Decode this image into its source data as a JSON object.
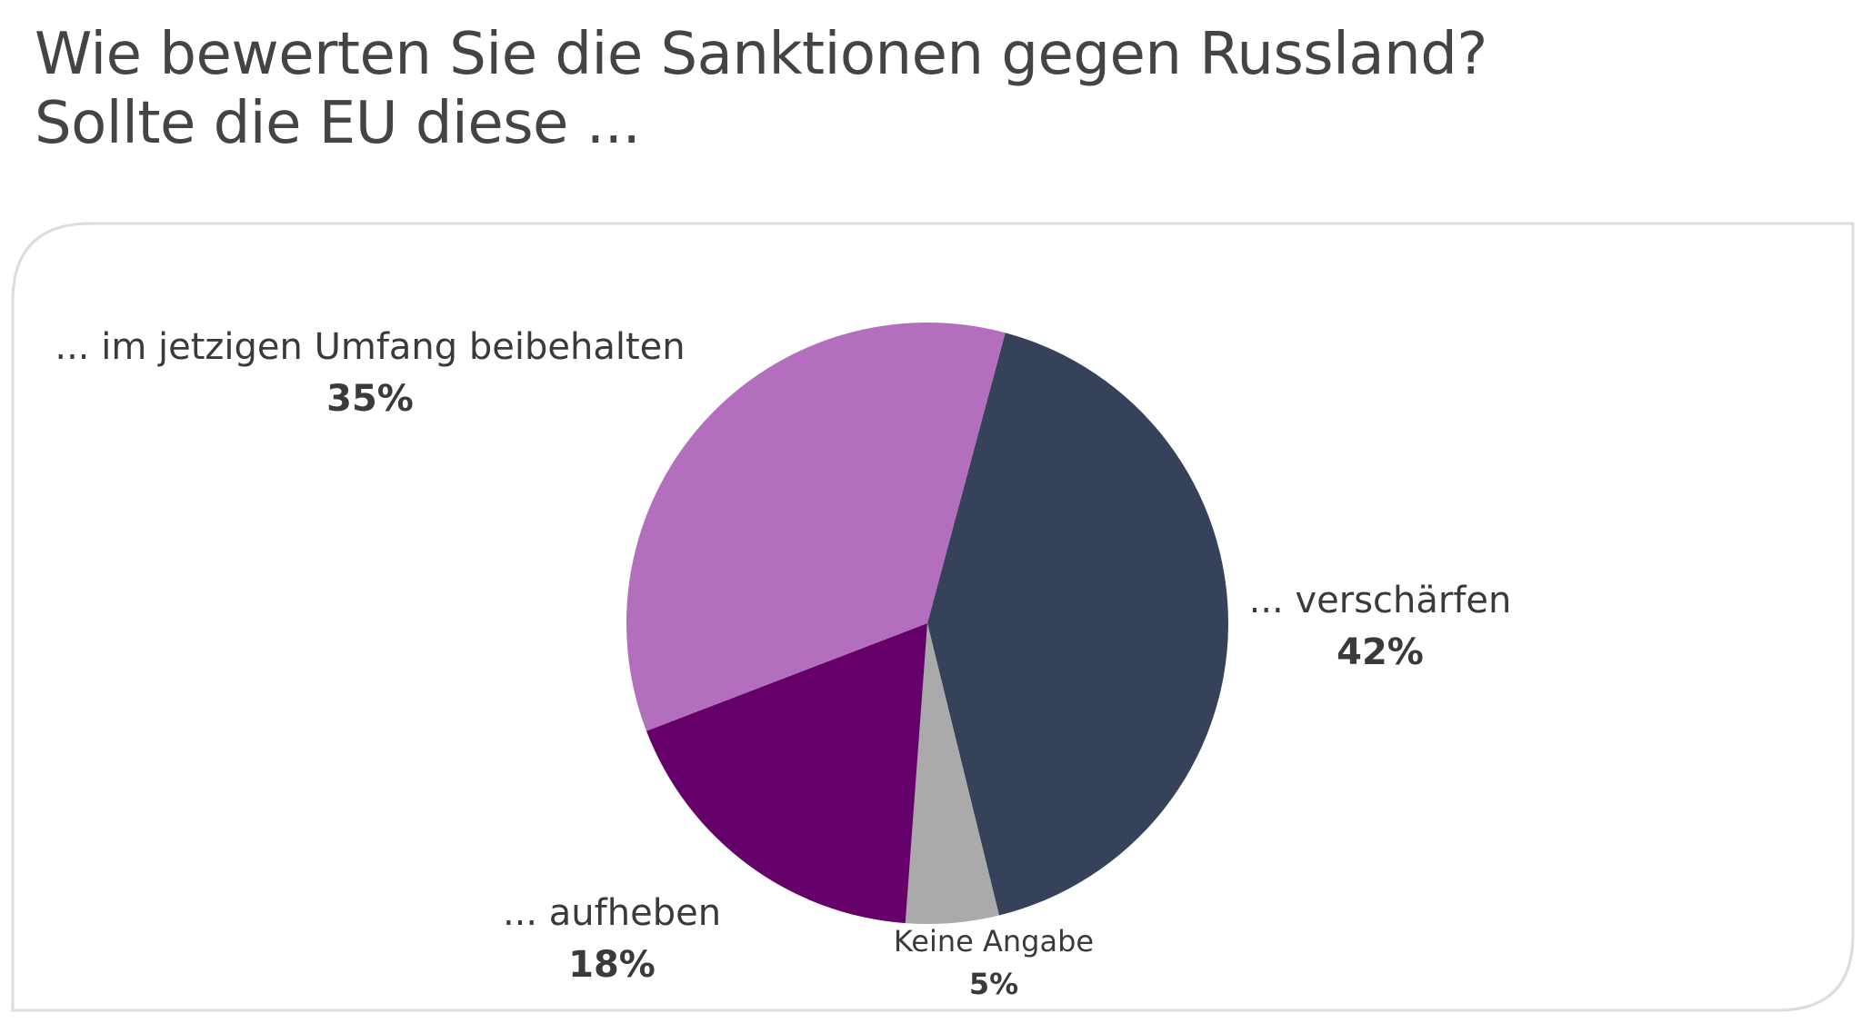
{
  "title": {
    "line1": "Wie bewerten Sie die Sanktionen gegen Russland?",
    "line2": "Sollte die EU diese ..."
  },
  "chart_data": {
    "type": "pie",
    "slices": [
      {
        "label": "... verschärfen",
        "value": 42,
        "value_label": "42%",
        "color": "#36425a"
      },
      {
        "label": "Keine Angabe",
        "value": 5,
        "value_label": "5%",
        "color": "#aaaaaa"
      },
      {
        "label": "... aufheben",
        "value": 18,
        "value_label": "18%",
        "color": "#65006b"
      },
      {
        "label": "... im jetzigen Umfang beibehalten",
        "value": 35,
        "value_label": "35%",
        "color": "#b36ebd"
      }
    ],
    "start_angle_deg": 15,
    "direction": "clockwise",
    "legend": "none"
  }
}
